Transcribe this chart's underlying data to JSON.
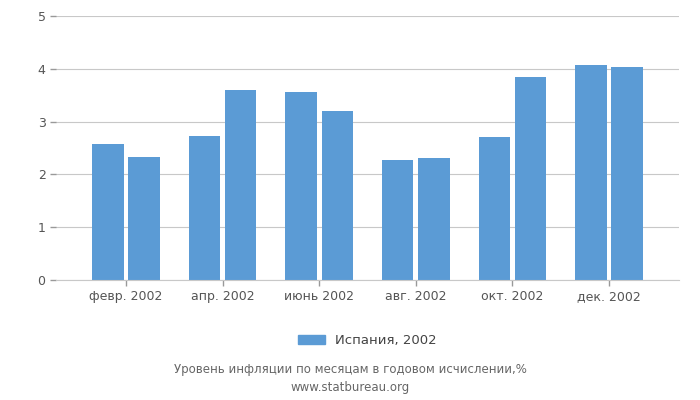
{
  "values": [
    2.57,
    2.33,
    2.73,
    3.59,
    3.56,
    3.21,
    2.27,
    2.31,
    2.7,
    3.84,
    4.08,
    4.04
  ],
  "xtick_labels": [
    "февр. 2002",
    "апр. 2002",
    "июнь 2002",
    "авг. 2002",
    "окт. 2002",
    "дек. 2002"
  ],
  "bar_color": "#5B9BD5",
  "ylim": [
    0,
    5
  ],
  "yticks": [
    0,
    1,
    2,
    3,
    4,
    5
  ],
  "legend_label": "Испания, 2002",
  "footer_line1": "Уровень инфляции по месяцам в годовом исчислении,%",
  "footer_line2": "www.statbureau.org",
  "background_color": "#FFFFFF",
  "grid_color": "#C8C8C8"
}
